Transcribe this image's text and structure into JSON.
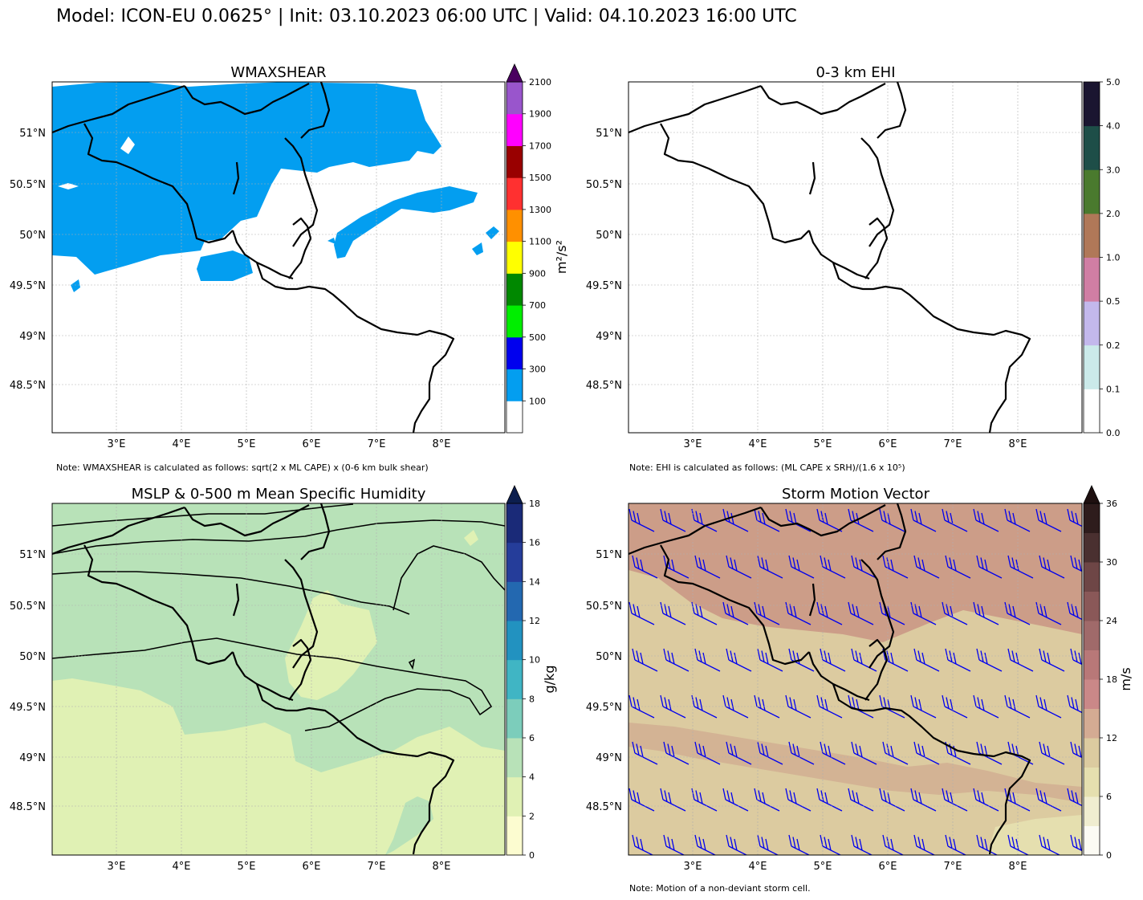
{
  "header": {
    "title": "Model: ICON-EU 0.0625° | Init: 03.10.2023 06:00 UTC | Valid: 04.10.2023 16:00 UTC"
  },
  "axes": {
    "lon_ticks": [
      "3°E",
      "4°E",
      "5°E",
      "6°E",
      "7°E",
      "8°E"
    ],
    "lat_ticks": [
      "51°N",
      "50.5°N",
      "50°N",
      "49.5°N",
      "49°N",
      "48.5°N"
    ]
  },
  "panels": {
    "wmaxshear": {
      "title": "WMAXSHEAR",
      "note": "Note: WMAXSHEAR is calculated as follows: sqrt(2 x ML CAPE) x (0-6 km bulk shear)",
      "colorbar": {
        "label": "m²/s²",
        "ticks": [
          "100",
          "300",
          "500",
          "700",
          "900",
          "1100",
          "1300",
          "1500",
          "1700",
          "1900",
          "2100"
        ],
        "colors": [
          "#ffffff",
          "#039ef0",
          "#0000ee",
          "#00ee00",
          "#008800",
          "#ffff00",
          "#ff9000",
          "#ff3030",
          "#990000",
          "#ff00ff",
          "#9955cc"
        ],
        "extend_color": "#4a0060"
      }
    },
    "ehi": {
      "title": "0-3 km EHI",
      "note": "Note: EHI is calculated as follows: (ML CAPE x SRH)/(1.6 x 10⁵)",
      "colorbar": {
        "ticks": [
          "0.0",
          "0.1",
          "0.2",
          "0.5",
          "1.0",
          "2.0",
          "3.0",
          "4.0",
          "5.0"
        ],
        "colors": [
          "#ffffff",
          "#cbeaea",
          "#c3b8ec",
          "#d07ea4",
          "#b07858",
          "#4a7a2e",
          "#1e4e48",
          "#1a1530"
        ]
      }
    },
    "humidity": {
      "title": "MSLP & 0-500 m Mean Specific Humidity",
      "colorbar": {
        "label": "g/kg",
        "ticks": [
          "0",
          "2",
          "4",
          "6",
          "8",
          "10",
          "12",
          "14",
          "16",
          "18"
        ],
        "colors": [
          "#fcfcd0",
          "#e0f1b4",
          "#b8e2b8",
          "#7ccdbb",
          "#40b5c4",
          "#2292c0",
          "#2368b0",
          "#253d9a",
          "#1a2a78"
        ],
        "extend_color": "#0c1e4e",
        "field": {
          "dry": "#e0f1b4",
          "moist": "#b8e2b8",
          "wettest": "#e8f3b8"
        }
      }
    },
    "storm": {
      "title": "Storm Motion Vector",
      "note": "Note: Motion of a non-deviant storm cell.",
      "colorbar": {
        "label": "m/s",
        "ticks": [
          "0",
          "6",
          "12",
          "18",
          "24",
          "30",
          "36"
        ],
        "colors": [
          "#fcfbf4",
          "#f0edd0",
          "#e5dfaf",
          "#dccba0",
          "#d4ab93",
          "#ca8888",
          "#b87878",
          "#a06a6a",
          "#8a5858",
          "#6e4646",
          "#4a3030",
          "#2e1c1c"
        ],
        "extend_color": "#1e1010",
        "field": {
          "base": "#dccba0",
          "high": "#cc9d88"
        },
        "barb_color": "#0000ee"
      }
    }
  }
}
